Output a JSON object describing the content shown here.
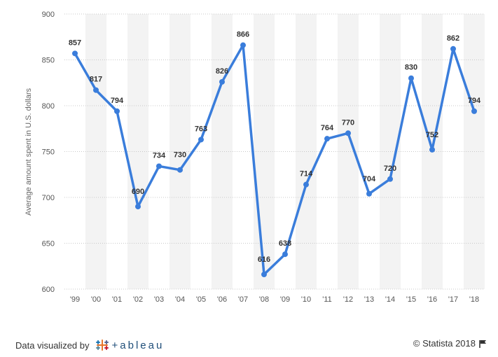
{
  "chart_data": {
    "type": "line",
    "title": "",
    "xlabel": "",
    "ylabel": "Average amount spent in U.S. dollars",
    "categories": [
      "'99",
      "'00",
      "'01",
      "'02",
      "'03",
      "'04",
      "'05",
      "'06",
      "'07",
      "'08",
      "'09",
      "'10",
      "'11",
      "'12",
      "'13",
      "'14",
      "'15",
      "'16",
      "'17",
      "'18"
    ],
    "values": [
      857,
      817,
      794,
      690,
      734,
      730,
      763,
      826,
      866,
      616,
      638,
      714,
      764,
      770,
      704,
      720,
      830,
      752,
      862,
      794
    ],
    "yticks": [
      600,
      650,
      700,
      750,
      800,
      850,
      900
    ],
    "ylim": [
      600,
      900
    ],
    "grid": true,
    "line_color": "#3a7ddb"
  },
  "footer": {
    "credit_text": "Data visualized by",
    "tableau_word": "+ableau",
    "copyright": "© Statista 2018"
  },
  "icons": {
    "tableau": "tableau-logo-icon",
    "flag": "flag-icon"
  }
}
